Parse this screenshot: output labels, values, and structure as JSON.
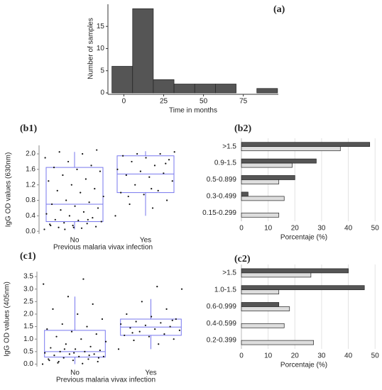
{
  "chart_data": [
    {
      "type": "histogram",
      "title": "(a)",
      "xlabel": "Time in months",
      "ylabel": "Number of samples",
      "bins": [
        -7.5,
        5.5,
        18.5,
        31.5,
        44.5,
        57.5,
        70.5,
        83.5,
        96.5
      ],
      "counts": [
        6,
        19,
        3,
        2,
        2,
        2,
        0,
        1
      ],
      "color": "#555555",
      "xlim": [
        -10,
        97
      ],
      "ylim": [
        0,
        20
      ],
      "xticks": [
        0,
        25,
        50,
        75
      ],
      "yticks": [
        0,
        5,
        10,
        15
      ]
    },
    {
      "type": "box",
      "title": "(b1)",
      "xlabel": "Previous malaria vivax infection",
      "ylabel": "IgG OD values (630nm)",
      "categories": [
        "No",
        "Yes"
      ],
      "color": "#7777ee",
      "ylim": [
        -0.07,
        2.22
      ],
      "yticks": [
        {
          "value": 0,
          "label": "0.0"
        },
        0.4,
        0.8,
        1.2,
        1.6,
        {
          "value": 2,
          "label": "2.0"
        }
      ],
      "boxes": [
        {
          "whislo": 0.05,
          "q1": 0.25,
          "med": 0.7,
          "q3": 1.65,
          "whishi": 2.05
        },
        {
          "whislo": 0.4,
          "q1": 1.0,
          "med": 1.48,
          "q3": 1.95,
          "whishi": 2.07
        }
      ],
      "points": [
        [
          0.05,
          0.08,
          0.1,
          0.12,
          0.15,
          0.18,
          0.2,
          0.22,
          0.25,
          0.28,
          0.3,
          0.35,
          0.4,
          0.45,
          0.5,
          0.55,
          0.6,
          0.65,
          0.7,
          0.75,
          0.8,
          0.9,
          1.0,
          1.05,
          1.1,
          1.2,
          1.3,
          1.35,
          1.45,
          1.55,
          1.6,
          1.65,
          1.7,
          1.8,
          1.9,
          2.0,
          2.05,
          2.1,
          0.1,
          0.15,
          0.3,
          0.05
        ],
        [
          0.4,
          0.6,
          0.7,
          0.8,
          0.95,
          1.0,
          1.05,
          1.2,
          1.3,
          1.4,
          1.45,
          1.5,
          1.55,
          1.6,
          1.7,
          1.8,
          1.85,
          1.9,
          1.95,
          2.0,
          2.0,
          2.05,
          1.1,
          0.9,
          1.75
        ]
      ]
    },
    {
      "type": "hbar",
      "title": "(b2)",
      "xlabel": "Porcentaje (%)",
      "categories": [
        ">1.5",
        "0.9-1.5",
        "0.5-0.899",
        "0.3-0.499",
        "0.15-0.299"
      ],
      "series": [
        {
          "color": "#555555",
          "values": [
            48,
            28,
            20,
            2.5,
            null
          ]
        },
        {
          "color": "#dddddd",
          "values": [
            37,
            19,
            14,
            16,
            14
          ]
        }
      ],
      "xlim": [
        0,
        51
      ],
      "xticks": [
        0,
        10,
        20,
        30,
        40,
        50
      ],
      "grid": true
    },
    {
      "type": "box",
      "title": "(c1)",
      "xlabel": "Previous malaria vivax infection",
      "ylabel": "IgG OD values (405nm)",
      "categories": [
        "No",
        "Yes"
      ],
      "color": "#7777ee",
      "ylim": [
        -0.1,
        3.7
      ],
      "yticks": [
        {
          "value": 0,
          "label": "0.0"
        },
        0.5,
        {
          "value": 1,
          "label": "1.0"
        },
        1.5,
        {
          "value": 2,
          "label": "2.0"
        },
        2.5,
        {
          "value": 3,
          "label": "3.0"
        },
        3.5
      ],
      "boxes": [
        {
          "whislo": 0.0,
          "q1": 0.28,
          "med": 0.5,
          "q3": 1.35,
          "whishi": 2.7
        },
        {
          "whislo": 0.6,
          "q1": 1.15,
          "med": 1.48,
          "q3": 1.8,
          "whishi": 2.6
        }
      ],
      "points": [
        [
          0.0,
          0.02,
          0.05,
          0.1,
          0.15,
          0.2,
          0.2,
          0.25,
          0.3,
          0.3,
          0.35,
          0.4,
          0.4,
          0.45,
          0.5,
          0.5,
          0.55,
          0.6,
          0.65,
          0.7,
          0.8,
          0.9,
          1.0,
          1.1,
          1.2,
          1.3,
          1.4,
          1.5,
          1.6,
          1.8,
          2.0,
          2.2,
          2.4,
          2.7,
          3.2,
          3.4,
          0.1,
          0.25,
          0.45,
          0.15,
          0.35,
          0.6
        ],
        [
          0.6,
          0.8,
          0.95,
          1.0,
          1.1,
          1.15,
          1.2,
          1.3,
          1.35,
          1.4,
          1.45,
          1.5,
          1.55,
          1.6,
          1.65,
          1.7,
          1.8,
          1.9,
          2.0,
          2.2,
          2.5,
          3.0,
          3.1,
          1.25,
          1.75
        ]
      ]
    },
    {
      "type": "hbar",
      "title": "(c2)",
      "xlabel": "Porcentaje (%)",
      "categories": [
        ">1.5",
        "1.0-1.5",
        "0.6-0.999",
        "0.4-0.599",
        "0.2-0.399"
      ],
      "series": [
        {
          "color": "#555555",
          "values": [
            40,
            46,
            14,
            null,
            null
          ]
        },
        {
          "color": "#dddddd",
          "values": [
            26,
            14,
            18,
            16,
            27
          ]
        }
      ],
      "xlim": [
        0,
        51
      ],
      "xticks": [
        0,
        10,
        20,
        30,
        40,
        50
      ],
      "grid": true
    }
  ]
}
